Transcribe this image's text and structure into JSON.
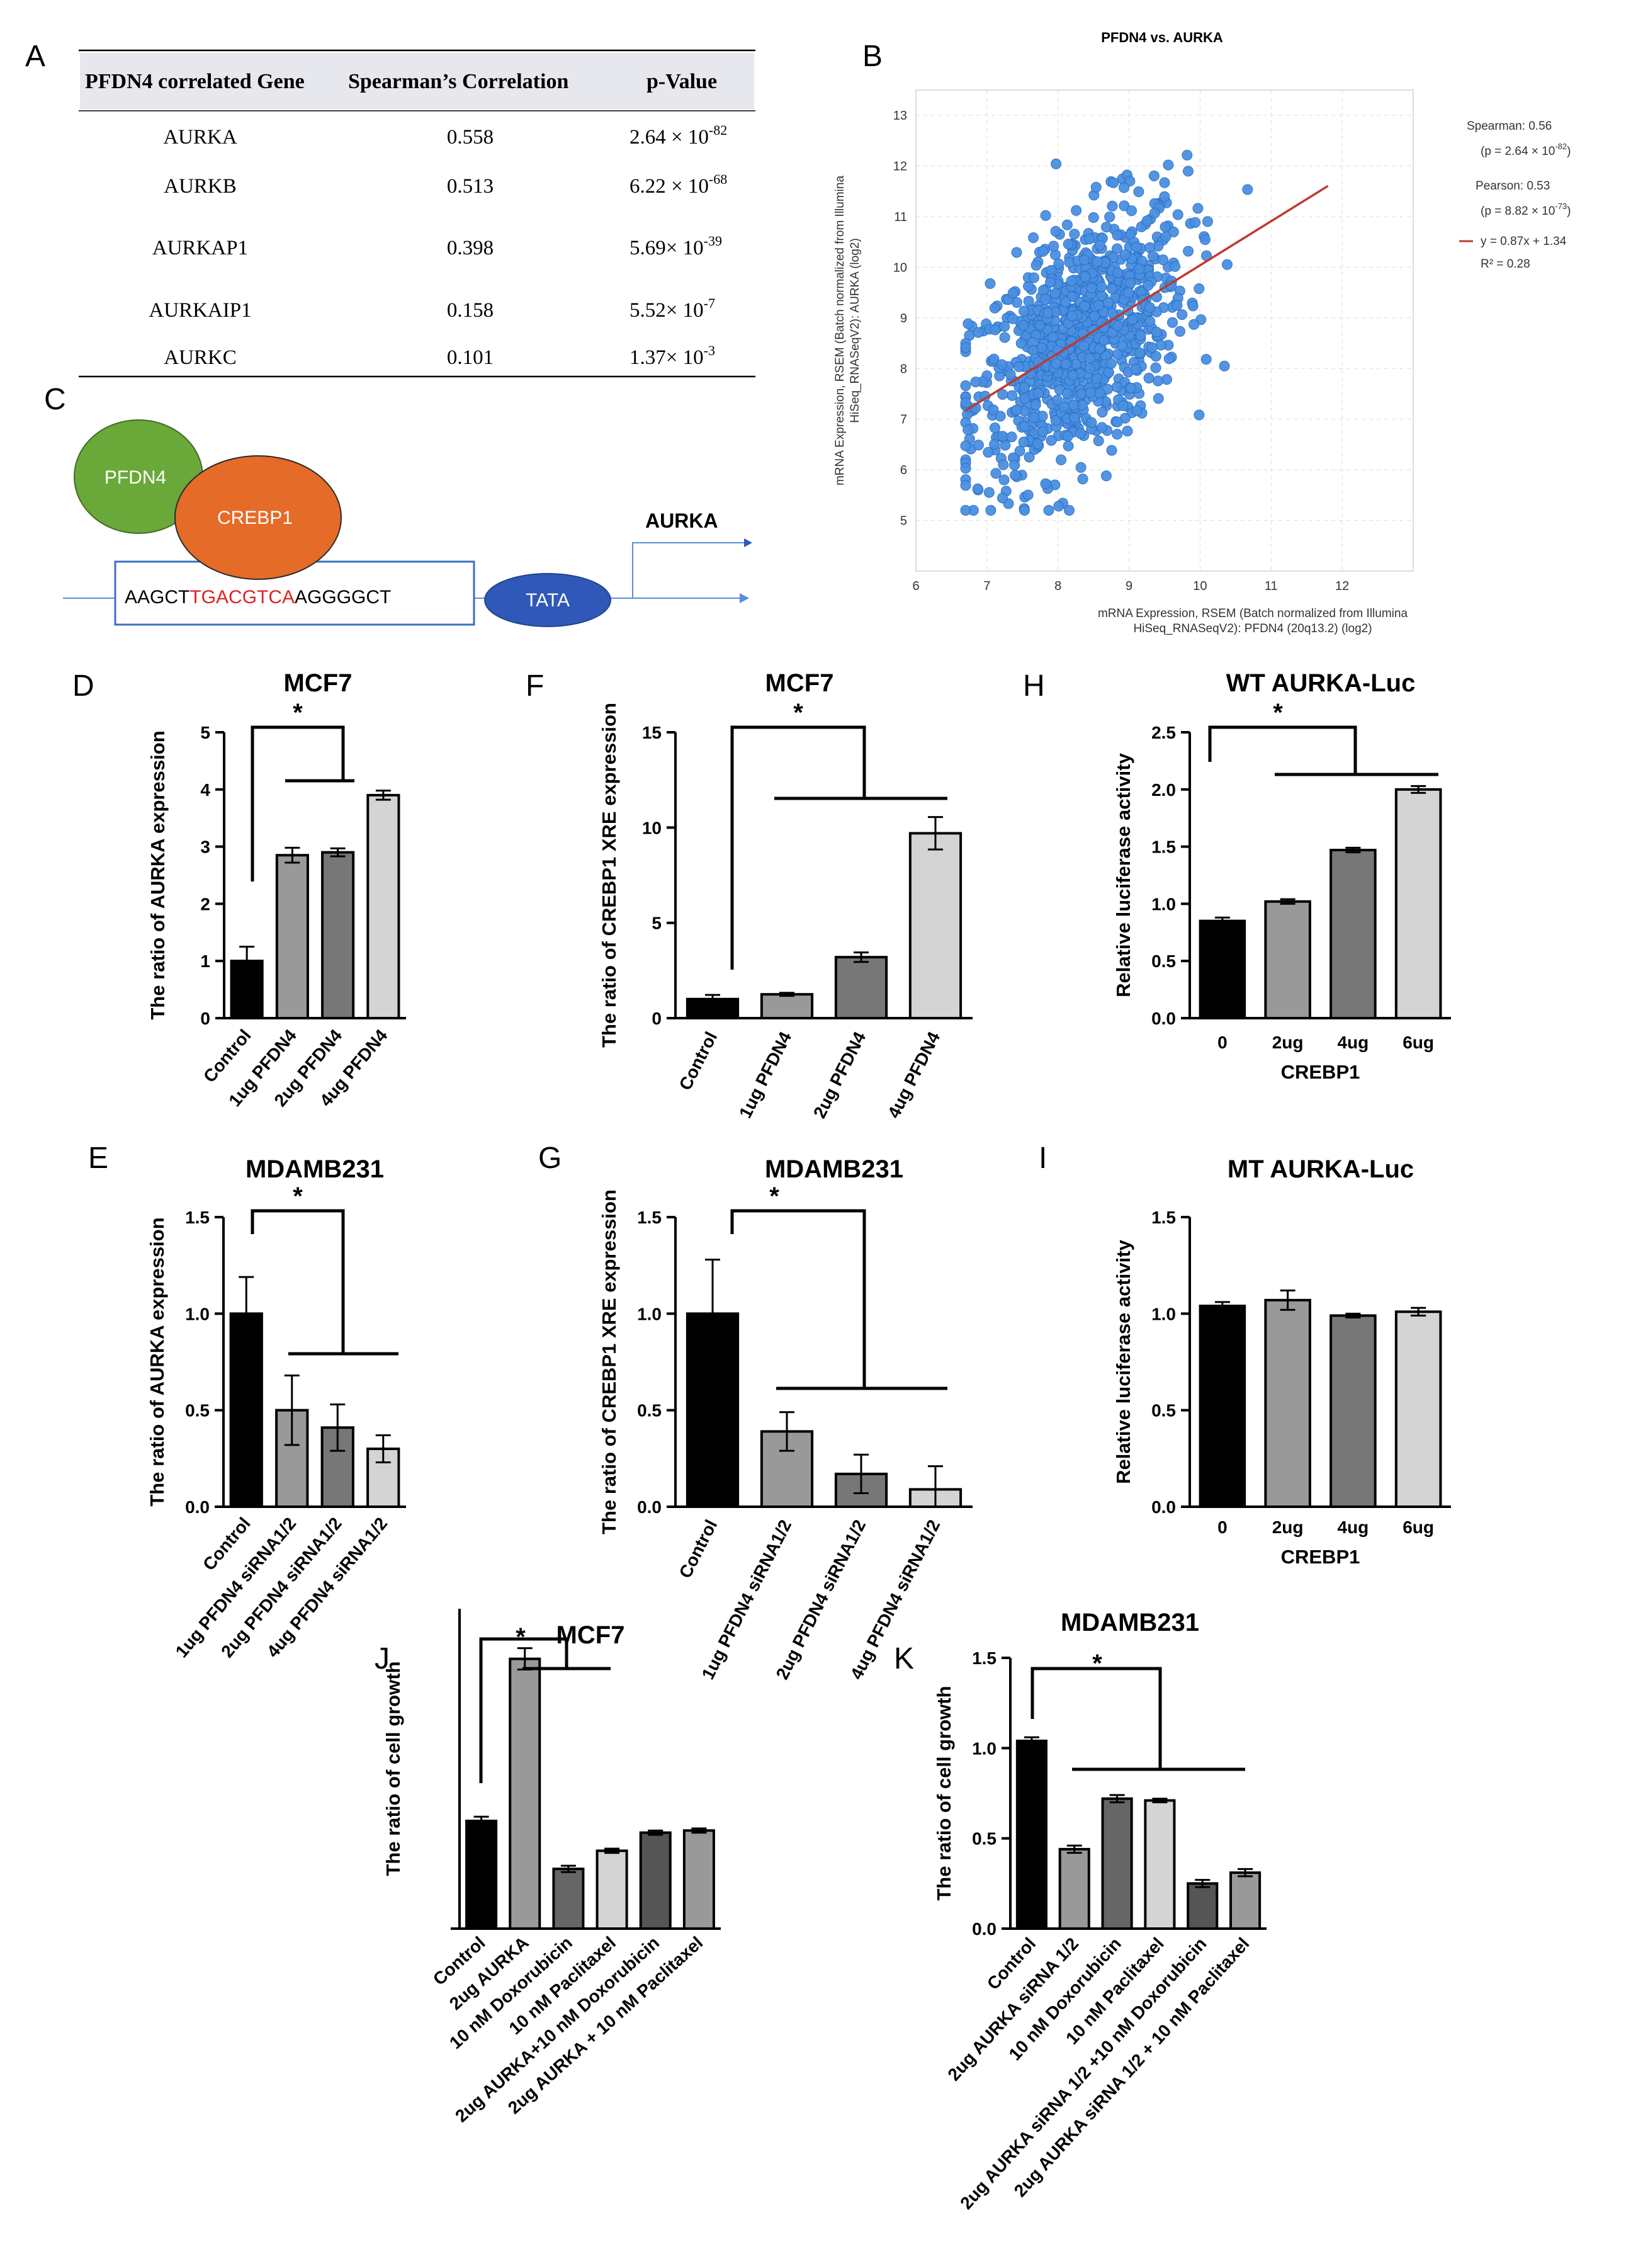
{
  "panel_labels": [
    "A",
    "B",
    "C",
    "D",
    "E",
    "F",
    "G",
    "H",
    "I",
    "J",
    "K"
  ],
  "table": {
    "headers": [
      "PFDN4 correlated Gene",
      "Spearman’s Correlation",
      "p-Value"
    ],
    "rows": [
      {
        "gene": "AURKA",
        "corr": "0.558",
        "p_mant": "2.64 × 10",
        "p_exp": "-82"
      },
      {
        "gene": "AURKB",
        "corr": "0.513",
        "p_mant": "6.22 × 10",
        "p_exp": "-68"
      },
      {
        "gene": "AURKAP1",
        "corr": "0.398",
        "p_mant": "5.69× 10",
        "p_exp": "-39"
      },
      {
        "gene": "AURKAIP1",
        "corr": "0.158",
        "p_mant": "5.52× 10",
        "p_exp": "-7"
      },
      {
        "gene": "AURKC",
        "corr": "0.101",
        "p_mant": "1.37× 10",
        "p_exp": "-3"
      }
    ]
  },
  "scatter": {
    "title": "PFDN4 vs. AURKA",
    "xlabel_1": "mRNA Expression, RSEM (Batch normalized from Illumina",
    "xlabel_2": "HiSeq_RNASeqV2): PFDN4 (20q13.2) (log2)",
    "ylabel_1": "mRNA Expression, RSEM (Batch normalized from Illumina",
    "ylabel_2": "HiSeq_RNASeqV2): AURKA (log2)",
    "legend": {
      "spearman": "Spearman: 0.56",
      "spearman_p": "(p = 2.64 × 10",
      "spearman_p_exp": "-82",
      "pearson": "Pearson: 0.53",
      "pearson_p": "(p = 8.82 × 10",
      "pearson_p_exp": "-73",
      "fit": "y = 0.87x + 1.34",
      "r2": "R² = 0.28"
    },
    "colors": {
      "point": "#4a90e2",
      "point_edge": "#2a6cc0",
      "fit": "#c0392b"
    }
  },
  "diagram": {
    "pfdn4": "PFDN4",
    "crebp1": "CREBP1",
    "seq_a": "AAGCT",
    "seq_b": "TGACGTCA",
    "seq_c": "AGGGGCT",
    "tata": "TATA",
    "gene": "AURKA",
    "colors": {
      "pfdn4": "#6aa83a",
      "crebp1": "#e56b28",
      "tata": "#2f58b8",
      "box": "#3a6fc4",
      "motif": "#e02020"
    }
  },
  "chart_data": [
    {
      "id": "D",
      "type": "bar",
      "title": "MCF7",
      "ylabel": "The ratio of AURKA expression",
      "categories": [
        "Control",
        "1ug PFDN4",
        "2ug PFDN4",
        "4ug PFDN4"
      ],
      "values": [
        1.0,
        2.85,
        2.9,
        3.9
      ],
      "errors": [
        0.25,
        0.13,
        0.07,
        0.08
      ],
      "ylim": [
        0,
        5
      ],
      "yticks": [
        "0",
        "1",
        "2",
        "3",
        "4",
        "5"
      ],
      "sig": "*"
    },
    {
      "id": "E",
      "type": "bar",
      "title": "MDAMB231",
      "ylabel": "The ratio of AURKA expression",
      "categories": [
        "Control",
        "1ug PFDN4 siRNA1/2",
        "2ug PFDN4 siRNA1/2",
        "4ug PFDN4 siRNA1/2"
      ],
      "values": [
        1.0,
        0.5,
        0.41,
        0.3
      ],
      "errors": [
        0.19,
        0.18,
        0.12,
        0.07
      ],
      "ylim": [
        0,
        1.5
      ],
      "yticks": [
        "0.0",
        "0.5",
        "1.0",
        "1.5"
      ],
      "sig": "*"
    },
    {
      "id": "F",
      "type": "bar",
      "title": "MCF7",
      "ylabel": "The ratio of CREBP1 XRE expression",
      "categories": [
        "Control",
        "1ug  PFDN4",
        "2ug PFDN4",
        "4ug PFDN4"
      ],
      "values": [
        1.0,
        1.25,
        3.2,
        9.7
      ],
      "errors": [
        0.22,
        0.08,
        0.25,
        0.85
      ],
      "ylim": [
        0,
        15
      ],
      "yticks": [
        "0",
        "5",
        "10",
        "15"
      ],
      "sig": "*"
    },
    {
      "id": "G",
      "type": "bar",
      "title": "MDAMB231",
      "ylabel": "The ratio of CREBP1 XRE expression",
      "categories": [
        "Control",
        "1ug PFDN4 siRNA1/2",
        "2ug PFDN4 siRNA1/2",
        "4ug  PFDN4 siRNA1/2"
      ],
      "values": [
        1.0,
        0.39,
        0.17,
        0.09
      ],
      "errors": [
        0.28,
        0.1,
        0.1,
        0.12
      ],
      "ylim": [
        0,
        1.5
      ],
      "yticks": [
        "0.0",
        "0.5",
        "1.0",
        "1.5"
      ],
      "sig": "*"
    },
    {
      "id": "H",
      "type": "bar",
      "title": "WT AURKA-Luc",
      "ylabel": "Relative luciferase activity",
      "xlabel": "CREBP1",
      "categories": [
        "0",
        "2ug",
        "4ug",
        "6ug"
      ],
      "values": [
        0.85,
        1.02,
        1.47,
        2.0
      ],
      "errors": [
        0.03,
        0.02,
        0.02,
        0.03
      ],
      "ylim": [
        0,
        2.5
      ],
      "yticks": [
        "0.0",
        "0.5",
        "1.0",
        "1.5",
        "2.0",
        "2.5"
      ],
      "sig": "*"
    },
    {
      "id": "I",
      "type": "bar",
      "title": "MT AURKA-Luc",
      "ylabel": "Relative luciferase activity",
      "xlabel": "CREBP1",
      "categories": [
        "0",
        "2ug",
        "4ug",
        "6ug"
      ],
      "values": [
        1.04,
        1.07,
        0.99,
        1.01
      ],
      "errors": [
        0.02,
        0.05,
        0.01,
        0.02
      ],
      "ylim": [
        0,
        1.5
      ],
      "yticks": [
        "0.0",
        "0.5",
        "1.0",
        "1.5"
      ],
      "sig": ""
    },
    {
      "id": "J",
      "type": "bar",
      "title": "MCF7",
      "ylabel": "The ratio of cell growth",
      "categories": [
        "Control",
        "2ug AURKA",
        "10 nM Doxorubicin",
        "10 nM Paclitaxel",
        "2ug AURKA+10 nM Doxorubicin",
        "2ug AURKA + 10 nM Paclitaxel"
      ],
      "values": [
        1.01,
        2.53,
        0.56,
        0.73,
        0.9,
        0.92
      ],
      "errors": [
        0.04,
        0.1,
        0.03,
        0.02,
        0.02,
        0.02
      ],
      "ylim": [
        0,
        3
      ],
      "yticks": [],
      "sig": "*"
    },
    {
      "id": "K",
      "type": "bar",
      "title": "MDAMB231",
      "ylabel": "The ratio of cell growth",
      "categories": [
        "Control",
        "2ug AURKA siRNA 1/2",
        "10 nM Doxorubicin",
        "10 nM Paclitaxel",
        "2ug AURKA siRNA 1/2 +10 nM Doxorubicin",
        "2ug AURKA siRNA 1/2 + 10 nM Paclitaxel"
      ],
      "values": [
        1.04,
        0.44,
        0.72,
        0.71,
        0.25,
        0.31
      ],
      "errors": [
        0.02,
        0.02,
        0.02,
        0.01,
        0.02,
        0.02
      ],
      "ylim": [
        0,
        1.5
      ],
      "yticks": [
        "0.0",
        "0.5",
        "1.0",
        "1.5"
      ],
      "sig": "*"
    }
  ]
}
